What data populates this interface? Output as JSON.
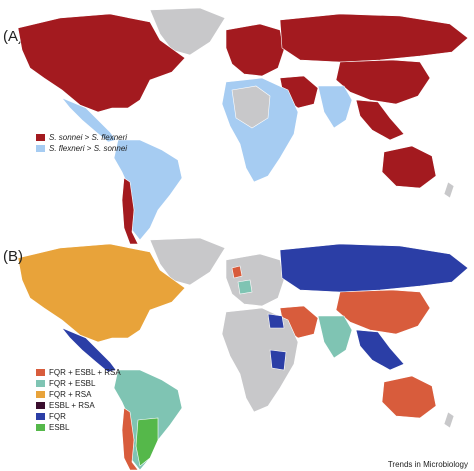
{
  "panels": [
    {
      "label": "(A)",
      "legend": [
        {
          "label_a": "S. sonnei",
          "sep": " > ",
          "label_b": "S. flexneri",
          "color": "#a31a1f"
        },
        {
          "label_a": "S. flexneri",
          "sep": " > ",
          "label_b": "S. sonnei",
          "color": "#a6ccf2"
        }
      ]
    },
    {
      "label": "(B)",
      "legend": [
        {
          "label": "FQR + ESBL + RSA",
          "color": "#d85c3c"
        },
        {
          "label": "FQR + ESBL",
          "color": "#7fc4b3"
        },
        {
          "label": "FQR + RSA",
          "color": "#e8a33a"
        },
        {
          "label": "ESBL + RSA",
          "color": "#3a0e2e"
        },
        {
          "label": "FQR",
          "color": "#2b3ea6"
        },
        {
          "label": "ESBL",
          "color": "#55b84a"
        }
      ]
    }
  ],
  "colors": {
    "no_data": "#c8c8ca",
    "border": "#ffffff"
  },
  "footer": "Trends in Microbiology"
}
